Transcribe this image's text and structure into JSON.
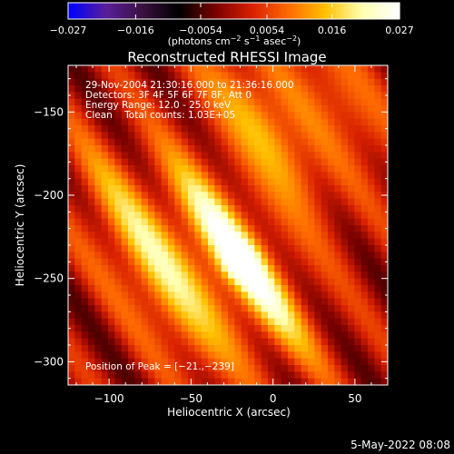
{
  "chart_data": {
    "type": "heatmap",
    "title": "Reconstructed RHESSI Image",
    "xlabel": "Heliocentric X (arcsec)",
    "ylabel": "Heliocentric Y (arcsec)",
    "xlim": [
      -125,
      70
    ],
    "ylim": [
      -314,
      -122
    ],
    "x_ticks": [
      -100,
      -50,
      0,
      50
    ],
    "x_tick_labels": [
      "−100",
      "−50",
      "0",
      "50"
    ],
    "y_ticks": [
      -150,
      -200,
      -250,
      -300
    ],
    "y_tick_labels": [
      "−150",
      "−200",
      "−250",
      "−300"
    ],
    "colorbar": {
      "range": [
        -0.027,
        0.027
      ],
      "ticks": [
        -0.027,
        -0.016,
        -0.0054,
        0.0054,
        0.016,
        0.027
      ],
      "tick_labels": [
        "−0.027",
        "−0.016",
        "−0.0054",
        "0.0054",
        "0.016",
        "0.027"
      ],
      "unit_text": "(photons cm",
      "unit_sup1": "−2",
      "unit_mid": " s",
      "unit_sup2": "−1",
      "unit_end": " asec",
      "unit_sup3": "−2",
      "unit_close": ")"
    },
    "annotations": [
      "29-Nov-2004 21:30:16.000 to 21:36:16.000",
      "Detectors: 3F 4F 5F 6F 7F 8F, Att 0",
      "Energy Range: 12.0 - 25.0 keV",
      "Clean    Total counts: 1.03E+05"
    ],
    "peak_label": "Position of Peak = [−21.,−239]",
    "peak_position": [
      -21,
      -239
    ],
    "peak_value": 0.027,
    "colormap": [
      "#0000ff",
      "#5a1f9a",
      "#3a1040",
      "#000000",
      "#7a0000",
      "#d82000",
      "#ff6a00",
      "#ffc000",
      "#ffffb0",
      "#ffffff"
    ],
    "features": {
      "stripe_angle_deg": 35,
      "stripe_period_arcsec": 40,
      "sources": [
        {
          "x": -21,
          "y": -239,
          "value": 0.027
        },
        {
          "x": -5,
          "y": -160,
          "value": 0.016
        },
        {
          "x": -85,
          "y": -220,
          "value": 0.012
        },
        {
          "x": -60,
          "y": -270,
          "value": 0.011
        },
        {
          "x": 40,
          "y": -140,
          "value": 0.01
        }
      ]
    }
  },
  "footer_date": "5-May-2022 08:08"
}
